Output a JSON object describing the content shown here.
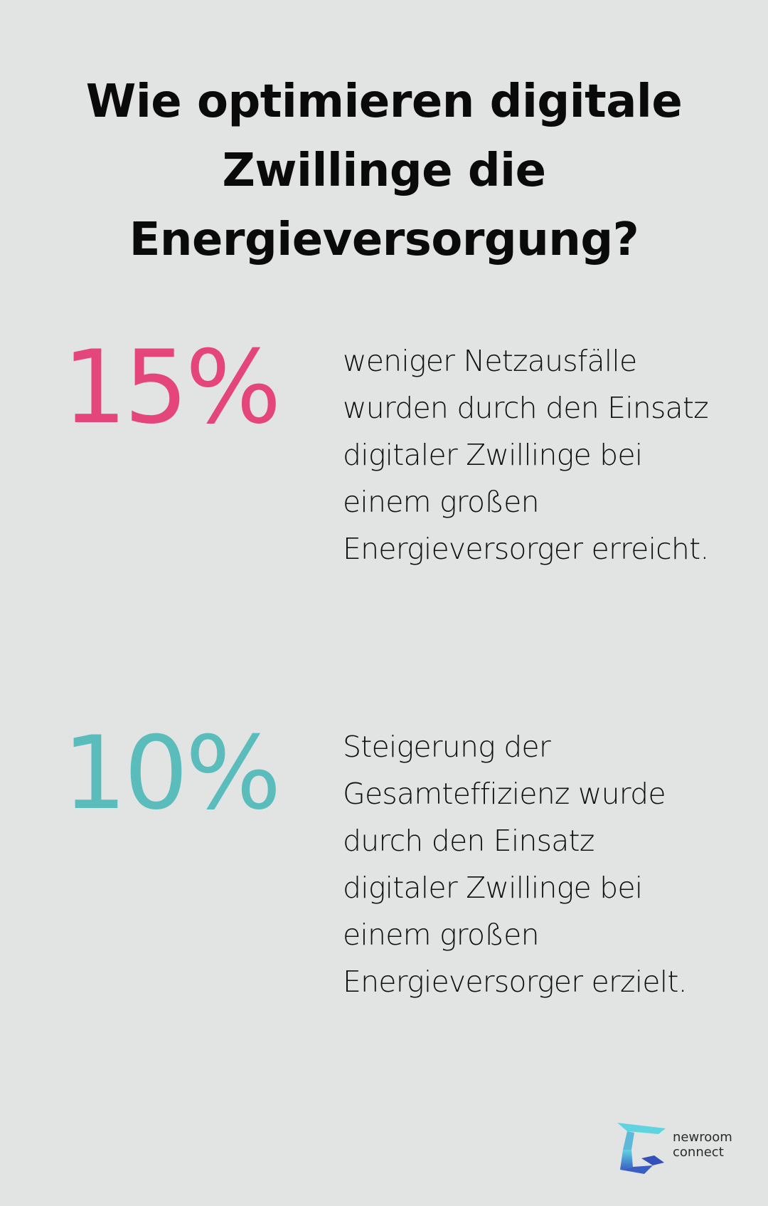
{
  "title": "Wie optimieren digitale Zwillinge die Energieversorgung?",
  "colors": {
    "background": "#e2e4e3",
    "stat_pink": "#e4457a",
    "stat_teal": "#5bbcbc",
    "logo_cyan": "#5fd4e0",
    "logo_blue": "#3a5fc4"
  },
  "stats": [
    {
      "value": "15%",
      "text": "weniger Netzausfälle wurden durch den Einsatz digitaler Zwillinge bei einem großen Energieversorger erreicht."
    },
    {
      "value": "10%",
      "text": "Steigerung der Gesamteffizienz wurde durch den Einsatz digitaler Zwillinge bei einem großen Energieversorger erzielt."
    }
  ],
  "logo": {
    "line1": "newroom",
    "line2": "connect",
    "icon": "newroom-connect-logo-icon"
  }
}
